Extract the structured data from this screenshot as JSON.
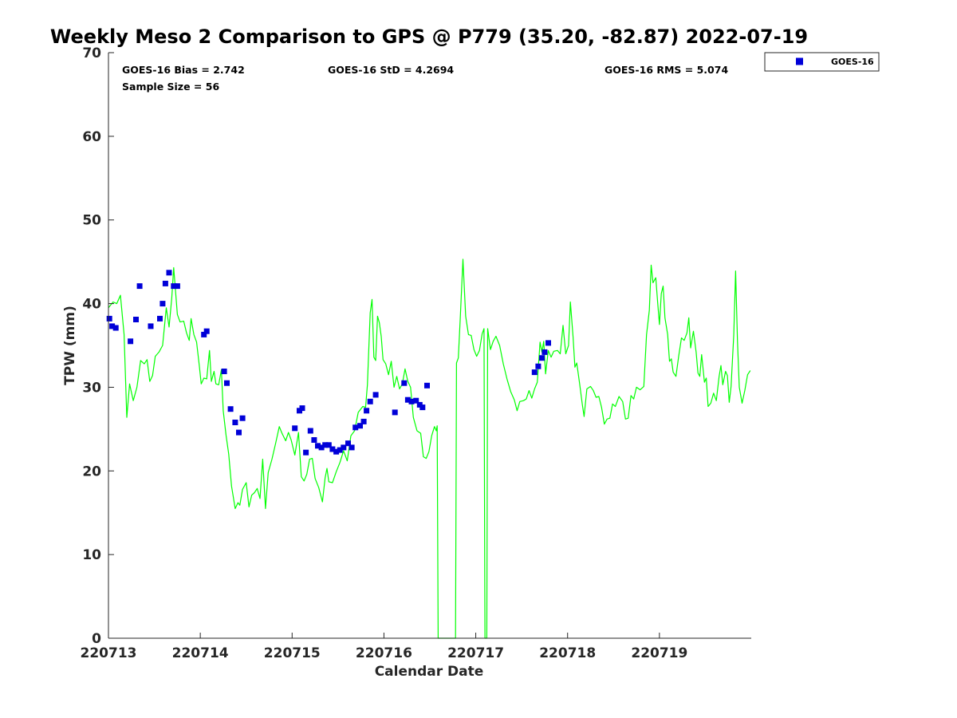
{
  "chart_data": {
    "type": "scatter",
    "title": "Weekly Meso 2 Comparison to GPS @ P779 (35.20, -82.87) 2022-07-19",
    "xlabel": "Calendar Date",
    "ylabel": "TPW (mm)",
    "xlim": [
      0,
      7.0
    ],
    "ylim": [
      0,
      70
    ],
    "x_tick_labels": [
      "220713",
      "220714",
      "220715",
      "220716",
      "220717",
      "220718",
      "220719"
    ],
    "y_tick_labels": [
      "0",
      "10",
      "20",
      "30",
      "40",
      "50",
      "60",
      "70"
    ],
    "y_ticks": [
      0,
      10,
      20,
      30,
      40,
      50,
      60,
      70
    ],
    "stats": {
      "bias": "GOES-16 Bias = 2.742",
      "std": "GOES-16 StD = 4.2694",
      "rms": "GOES-16 RMS = 5.074",
      "sample": "Sample Size = 56"
    },
    "legend": {
      "position": "top-right, outside plot",
      "label": "GOES-16"
    },
    "colors": {
      "goes": "#0000d8",
      "gps": "#00ff00",
      "axes": "#262626"
    },
    "series": [
      {
        "name": "GOES-16",
        "marker": "square",
        "color": "#0000d8",
        "points": [
          [
            0.01,
            38.2
          ],
          [
            0.04,
            37.3
          ],
          [
            0.08,
            37.1
          ],
          [
            0.24,
            35.5
          ],
          [
            0.3,
            38.1
          ],
          [
            0.34,
            42.1
          ],
          [
            0.46,
            37.3
          ],
          [
            0.56,
            38.2
          ],
          [
            0.59,
            40.0
          ],
          [
            0.62,
            42.4
          ],
          [
            0.66,
            43.7
          ],
          [
            0.71,
            42.1
          ],
          [
            0.75,
            42.1
          ],
          [
            1.04,
            36.3
          ],
          [
            1.07,
            36.7
          ],
          [
            1.26,
            31.9
          ],
          [
            1.29,
            30.5
          ],
          [
            1.33,
            27.4
          ],
          [
            1.38,
            25.8
          ],
          [
            1.42,
            24.6
          ],
          [
            1.46,
            26.3
          ],
          [
            2.03,
            25.1
          ],
          [
            2.08,
            27.2
          ],
          [
            2.11,
            27.5
          ],
          [
            2.15,
            22.2
          ],
          [
            2.2,
            24.8
          ],
          [
            2.24,
            23.7
          ],
          [
            2.28,
            23.0
          ],
          [
            2.32,
            22.8
          ],
          [
            2.36,
            23.1
          ],
          [
            2.4,
            23.1
          ],
          [
            2.44,
            22.6
          ],
          [
            2.48,
            22.3
          ],
          [
            2.52,
            22.5
          ],
          [
            2.56,
            22.8
          ],
          [
            2.61,
            23.3
          ],
          [
            2.65,
            22.8
          ],
          [
            2.69,
            25.2
          ],
          [
            2.74,
            25.4
          ],
          [
            2.78,
            25.9
          ],
          [
            2.81,
            27.2
          ],
          [
            2.85,
            28.3
          ],
          [
            2.91,
            29.1
          ],
          [
            3.12,
            27.0
          ],
          [
            3.22,
            30.5
          ],
          [
            3.26,
            28.5
          ],
          [
            3.3,
            28.3
          ],
          [
            3.35,
            28.4
          ],
          [
            3.39,
            27.9
          ],
          [
            3.42,
            27.6
          ],
          [
            3.47,
            30.2
          ],
          [
            4.64,
            31.8
          ],
          [
            4.68,
            32.5
          ],
          [
            4.72,
            33.5
          ],
          [
            4.75,
            34.2
          ],
          [
            4.79,
            35.3
          ]
        ]
      },
      {
        "name": "GPS",
        "line": true,
        "color": "#00ff00",
        "points": [
          [
            0.0,
            39.5
          ],
          [
            0.05,
            40.2
          ],
          [
            0.09,
            40.0
          ],
          [
            0.13,
            41.0
          ],
          [
            0.17,
            36.3
          ],
          [
            0.2,
            26.4
          ],
          [
            0.23,
            30.4
          ],
          [
            0.27,
            28.4
          ],
          [
            0.31,
            30.0
          ],
          [
            0.35,
            33.2
          ],
          [
            0.39,
            32.8
          ],
          [
            0.42,
            33.3
          ],
          [
            0.45,
            30.7
          ],
          [
            0.48,
            31.4
          ],
          [
            0.51,
            33.7
          ],
          [
            0.55,
            34.2
          ],
          [
            0.59,
            35.0
          ],
          [
            0.63,
            39.5
          ],
          [
            0.66,
            37.2
          ],
          [
            0.69,
            40.7
          ],
          [
            0.71,
            44.3
          ],
          [
            0.75,
            38.7
          ],
          [
            0.78,
            37.8
          ],
          [
            0.82,
            37.9
          ],
          [
            0.85,
            36.5
          ],
          [
            0.88,
            35.6
          ],
          [
            0.9,
            38.2
          ],
          [
            0.93,
            36.3
          ],
          [
            0.96,
            35.4
          ],
          [
            0.99,
            32.5
          ],
          [
            1.01,
            30.4
          ],
          [
            1.04,
            31.1
          ],
          [
            1.07,
            31.0
          ],
          [
            1.1,
            34.4
          ],
          [
            1.12,
            30.7
          ],
          [
            1.15,
            31.9
          ],
          [
            1.17,
            30.4
          ],
          [
            1.2,
            30.3
          ],
          [
            1.23,
            32.1
          ],
          [
            1.25,
            27.2
          ],
          [
            1.28,
            24.3
          ],
          [
            1.31,
            22.0
          ],
          [
            1.34,
            18.2
          ],
          [
            1.38,
            15.5
          ],
          [
            1.41,
            16.2
          ],
          [
            1.43,
            15.9
          ],
          [
            1.46,
            17.8
          ],
          [
            1.5,
            18.6
          ],
          [
            1.53,
            15.7
          ],
          [
            1.56,
            17.1
          ],
          [
            1.59,
            17.4
          ],
          [
            1.62,
            17.9
          ],
          [
            1.65,
            16.7
          ],
          [
            1.68,
            21.4
          ],
          [
            1.71,
            15.5
          ],
          [
            1.74,
            19.8
          ],
          [
            1.78,
            21.4
          ],
          [
            1.82,
            23.3
          ],
          [
            1.86,
            25.3
          ],
          [
            1.89,
            24.5
          ],
          [
            1.93,
            23.6
          ],
          [
            1.96,
            24.6
          ],
          [
            1.99,
            23.7
          ],
          [
            2.03,
            21.9
          ],
          [
            2.07,
            24.6
          ],
          [
            2.1,
            19.3
          ],
          [
            2.13,
            18.8
          ],
          [
            2.16,
            19.6
          ],
          [
            2.19,
            21.4
          ],
          [
            2.22,
            21.5
          ],
          [
            2.25,
            19.1
          ],
          [
            2.29,
            18.0
          ],
          [
            2.33,
            16.3
          ],
          [
            2.36,
            19.2
          ],
          [
            2.38,
            20.3
          ],
          [
            2.4,
            18.7
          ],
          [
            2.44,
            18.6
          ],
          [
            2.48,
            19.9
          ],
          [
            2.52,
            21.0
          ],
          [
            2.56,
            22.4
          ],
          [
            2.6,
            21.2
          ],
          [
            2.64,
            24.2
          ],
          [
            2.68,
            24.8
          ],
          [
            2.72,
            27.0
          ],
          [
            2.77,
            27.7
          ],
          [
            2.8,
            27.6
          ],
          [
            2.82,
            30.3
          ],
          [
            2.85,
            38.9
          ],
          [
            2.87,
            40.5
          ],
          [
            2.89,
            33.6
          ],
          [
            2.91,
            33.2
          ],
          [
            2.93,
            38.5
          ],
          [
            2.95,
            37.7
          ],
          [
            2.97,
            36.1
          ],
          [
            2.99,
            33.3
          ],
          [
            3.02,
            32.8
          ],
          [
            3.05,
            31.5
          ],
          [
            3.08,
            33.1
          ],
          [
            3.11,
            30.0
          ],
          [
            3.14,
            31.3
          ],
          [
            3.17,
            29.8
          ],
          [
            3.2,
            30.4
          ],
          [
            3.23,
            32.2
          ],
          [
            3.26,
            30.7
          ],
          [
            3.29,
            30.0
          ],
          [
            3.32,
            26.4
          ],
          [
            3.36,
            24.8
          ],
          [
            3.4,
            24.5
          ],
          [
            3.43,
            21.7
          ],
          [
            3.46,
            21.5
          ],
          [
            3.49,
            22.3
          ],
          [
            3.52,
            24.2
          ],
          [
            3.55,
            25.3
          ],
          [
            3.57,
            24.8
          ],
          [
            3.58,
            25.4
          ],
          [
            3.59,
            0
          ],
          [
            3.78,
            0
          ],
          [
            3.79,
            32.9
          ],
          [
            3.81,
            33.5
          ],
          [
            3.83,
            38.0
          ],
          [
            3.86,
            45.3
          ],
          [
            3.89,
            38.5
          ],
          [
            3.92,
            36.3
          ],
          [
            3.95,
            36.2
          ],
          [
            3.98,
            34.5
          ],
          [
            4.01,
            33.7
          ],
          [
            4.04,
            34.4
          ],
          [
            4.07,
            36.4
          ],
          [
            4.09,
            37.0
          ],
          [
            4.1,
            0
          ],
          [
            4.12,
            0
          ],
          [
            4.13,
            37.0
          ],
          [
            4.16,
            34.5
          ],
          [
            4.19,
            35.5
          ],
          [
            4.22,
            36.1
          ],
          [
            4.26,
            35.0
          ],
          [
            4.3,
            32.8
          ],
          [
            4.34,
            31.0
          ],
          [
            4.38,
            29.5
          ],
          [
            4.42,
            28.5
          ],
          [
            4.45,
            27.2
          ],
          [
            4.48,
            28.3
          ],
          [
            4.52,
            28.4
          ],
          [
            4.55,
            28.6
          ],
          [
            4.58,
            29.6
          ],
          [
            4.61,
            28.7
          ],
          [
            4.64,
            29.8
          ],
          [
            4.67,
            30.6
          ],
          [
            4.7,
            35.4
          ],
          [
            4.72,
            34.2
          ],
          [
            4.74,
            35.5
          ],
          [
            4.76,
            31.6
          ],
          [
            4.79,
            34.4
          ],
          [
            4.82,
            33.6
          ],
          [
            4.85,
            34.3
          ],
          [
            4.89,
            34.4
          ],
          [
            4.92,
            34.0
          ],
          [
            4.95,
            37.4
          ],
          [
            4.98,
            34.0
          ],
          [
            5.01,
            35.0
          ],
          [
            5.03,
            40.2
          ],
          [
            5.06,
            36.0
          ],
          [
            5.08,
            32.4
          ],
          [
            5.1,
            32.9
          ],
          [
            5.13,
            30.5
          ],
          [
            5.16,
            28.0
          ],
          [
            5.18,
            26.5
          ],
          [
            5.21,
            29.8
          ],
          [
            5.25,
            30.1
          ],
          [
            5.28,
            29.6
          ],
          [
            5.31,
            28.8
          ],
          [
            5.34,
            28.9
          ],
          [
            5.37,
            27.6
          ],
          [
            5.4,
            25.6
          ],
          [
            5.43,
            26.2
          ],
          [
            5.46,
            26.3
          ],
          [
            5.49,
            28.0
          ],
          [
            5.52,
            27.7
          ],
          [
            5.56,
            28.9
          ],
          [
            5.6,
            28.3
          ],
          [
            5.63,
            26.2
          ],
          [
            5.66,
            26.3
          ],
          [
            5.69,
            29.0
          ],
          [
            5.72,
            28.6
          ],
          [
            5.75,
            30.0
          ],
          [
            5.79,
            29.7
          ],
          [
            5.83,
            30.1
          ],
          [
            5.86,
            36.3
          ],
          [
            5.89,
            39.2
          ],
          [
            5.91,
            44.6
          ],
          [
            5.93,
            42.5
          ],
          [
            5.96,
            43.1
          ],
          [
            5.98,
            40.2
          ],
          [
            6.0,
            37.5
          ],
          [
            6.02,
            41.2
          ],
          [
            6.04,
            42.1
          ],
          [
            6.06,
            38.3
          ],
          [
            6.09,
            36.3
          ],
          [
            6.11,
            33.1
          ],
          [
            6.13,
            33.4
          ],
          [
            6.15,
            31.8
          ],
          [
            6.18,
            31.3
          ],
          [
            6.21,
            33.7
          ],
          [
            6.24,
            35.9
          ],
          [
            6.27,
            35.6
          ],
          [
            6.3,
            36.5
          ],
          [
            6.32,
            38.3
          ],
          [
            6.34,
            34.7
          ],
          [
            6.37,
            36.7
          ],
          [
            6.4,
            34.2
          ],
          [
            6.42,
            31.7
          ],
          [
            6.44,
            31.3
          ],
          [
            6.46,
            33.9
          ],
          [
            6.49,
            30.6
          ],
          [
            6.51,
            31.1
          ],
          [
            6.53,
            27.7
          ],
          [
            6.56,
            28.1
          ],
          [
            6.59,
            29.3
          ],
          [
            6.62,
            28.4
          ],
          [
            6.65,
            31.3
          ],
          [
            6.67,
            32.6
          ],
          [
            6.69,
            30.3
          ],
          [
            6.72,
            31.9
          ],
          [
            6.74,
            31.4
          ],
          [
            6.76,
            28.2
          ],
          [
            6.78,
            30.1
          ],
          [
            6.81,
            36.3
          ],
          [
            6.83,
            43.9
          ],
          [
            6.85,
            35.6
          ],
          [
            6.87,
            30.0
          ],
          [
            6.9,
            28.1
          ],
          [
            6.93,
            29.6
          ],
          [
            6.96,
            31.5
          ],
          [
            6.99,
            32.0
          ]
        ]
      }
    ]
  }
}
